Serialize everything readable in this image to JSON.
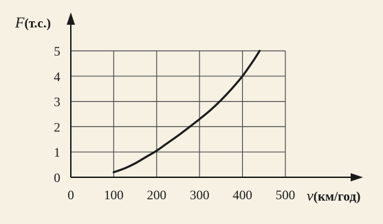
{
  "chart_data": {
    "type": "line",
    "x_label": {
      "variable": "v",
      "unit": "(км/год)"
    },
    "y_label": {
      "variable": "F",
      "unit": "(т.с.)"
    },
    "x_ticks": [
      "0",
      "100",
      "200",
      "300",
      "400",
      "500"
    ],
    "y_ticks": [
      "0",
      "1",
      "2",
      "3",
      "4",
      "5"
    ],
    "xlim": [
      0,
      500
    ],
    "ylim": [
      0,
      5
    ],
    "grid": true,
    "background": "#f6f1e3",
    "line_color": "#1a1a1a",
    "series": [
      {
        "x": [
          100,
          125,
          150,
          175,
          200,
          225,
          250,
          275,
          300,
          325,
          350,
          375,
          400,
          425,
          440
        ],
        "y": [
          0.2,
          0.35,
          0.55,
          0.8,
          1.05,
          1.35,
          1.65,
          1.97,
          2.3,
          2.65,
          3.05,
          3.5,
          4.0,
          4.6,
          5.0
        ]
      }
    ]
  }
}
